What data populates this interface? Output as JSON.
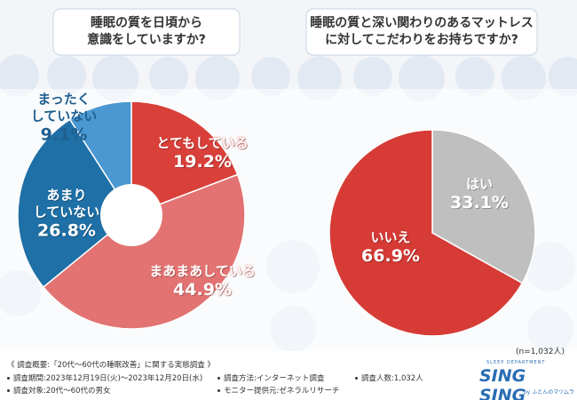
{
  "chart_data": [
    {
      "type": "donut",
      "title": "睡眠の質を日頃から\n意識をしていますか?",
      "categories": [
        "とてもしている",
        "まあまあしている",
        "あまり\nしていない",
        "まったく\nしていない"
      ],
      "values": [
        19.2,
        44.9,
        26.8,
        9.1
      ],
      "value_labels": [
        "19.2%",
        "44.9%",
        "26.8%",
        "9.1%"
      ],
      "colors": [
        "#d9403a",
        "#e27372",
        "#1f70a6",
        "#4b97d1"
      ]
    },
    {
      "type": "pie",
      "title": "睡眠の質と深い関わりのあるマットレス\nに対してこだわりをお持ちですか?",
      "categories": [
        "はい",
        "いいえ"
      ],
      "values": [
        33.1,
        66.9
      ],
      "value_labels": [
        "33.1%",
        "66.9%"
      ],
      "colors": [
        "#bfbfbf",
        "#d63b36"
      ]
    }
  ],
  "note": "(n=1,032人)",
  "footer": {
    "heading": "《 調査概要:「20代～60代の睡眠改善」に関する実態調査 》",
    "items": [
      "調査期間:2023年12月19日(火)～2023年12月20日(水)",
      "調査対象:20代～60代の男女",
      "調査方法:インターネット調査",
      "モニター提供元:ゼネラルリサーチ",
      "調査人数:1,032人"
    ]
  },
  "logo": {
    "tagline": "SLEEP DEPARTMENT",
    "name": "SING SING",
    "by": "by ふとんのマツムラ"
  }
}
